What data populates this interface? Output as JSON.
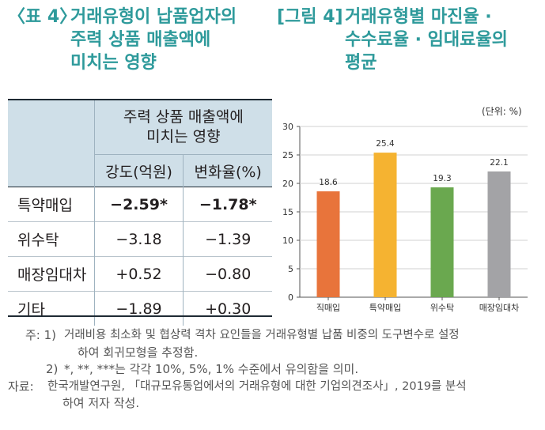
{
  "table_title": {
    "tag": "〈표 4〉",
    "lines": [
      "거래유형이 납품업자의",
      "주력 상품 매출액에",
      "미치는 영향"
    ]
  },
  "figure_title": {
    "tag": "[그림 4]",
    "lines": [
      "거래유형별 마진율 ·",
      "수수료율 · 임대료율의",
      "평균"
    ]
  },
  "table": {
    "header_group": [
      "주력 상품 매출액에",
      "미치는 영향"
    ],
    "columns": [
      "강도(억원)",
      "변화율(%)"
    ],
    "rows": [
      {
        "label": "특약매입",
        "strength": "−2.59*",
        "rate": "−1.78*"
      },
      {
        "label": "위수탁",
        "strength": "−3.18",
        "rate": "−1.39"
      },
      {
        "label": "매장임대차",
        "strength": "+0.52",
        "rate": "−0.80"
      },
      {
        "label": "기타",
        "strength": "−1.89",
        "rate": "+0.30"
      }
    ]
  },
  "chart_data": {
    "type": "bar",
    "unit_label": "(단위: %)",
    "categories": [
      "직매입",
      "특약매입",
      "위수탁",
      "매장임대차"
    ],
    "values": [
      18.6,
      25.4,
      19.3,
      22.1
    ],
    "value_labels": [
      "18.6",
      "25.4",
      "19.3",
      "22.1"
    ],
    "bar_colors": [
      "#e8743b",
      "#f5b331",
      "#6aa84f",
      "#a3a3a6"
    ],
    "ylim": [
      0,
      30
    ],
    "yticks": [
      0,
      5,
      10,
      15,
      20,
      25,
      30
    ],
    "ytick_labels": [
      "0",
      "5",
      "10",
      "15",
      "20",
      "25",
      "30"
    ],
    "grid": true
  },
  "notes": {
    "note1_prefix": "주: 1)",
    "note1_line1": "거래비용 최소화 및 협상력 격차 요인들을 거래유형별 납품 비중의 도구변수로 설정",
    "note1_line2": "하여 회귀모형을 추정함.",
    "note2_prefix": "2)",
    "note2_line1": "*, **, ***는 각각 10%, 5%, 1% 수준에서 유의함을 의미.",
    "source_prefix": "자료:",
    "source_line1": "한국개발연구원, 「대규모유통업에서의 거래유형에 대한 기업의견조사」, 2019를 분석",
    "source_line2": "하여 저자 작성."
  }
}
